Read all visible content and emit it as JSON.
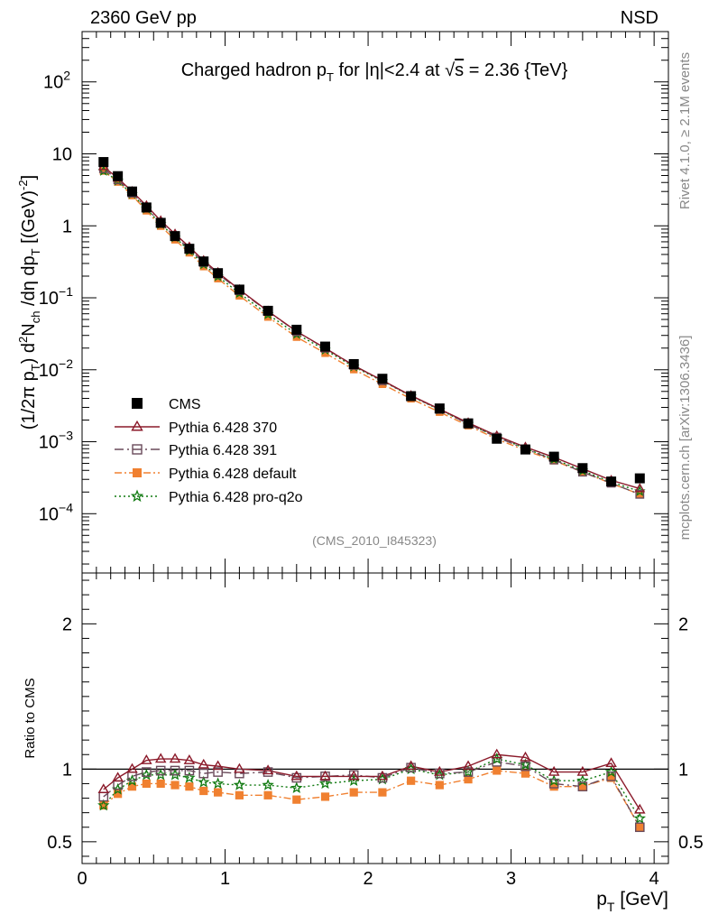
{
  "header": {
    "left": "2360 GeV pp",
    "right": "NSD"
  },
  "side_labels": {
    "rivet": "Rivet 4.1.0, ≥ 2.1M events",
    "mcplots": "mcplots.cern.ch [arXiv:1306.3436]"
  },
  "chart_data": [
    {
      "type": "line",
      "panel": "main",
      "title": "Charged hadron p_T for |η|<2.4 at √s = 2.36 {TeV}",
      "title_parts": {
        "t1": "Charged hadron p",
        "t1_sub": "T",
        "t2": " for |η|<2.4 at ",
        "t3": "√",
        "t4": "s",
        "t5": " = 2.36 {TeV}"
      },
      "ylabel": "(1/2π p_T) d²N_ch/dη dp_T [(GeV)⁻²]",
      "ylabel_parts": {
        "a": "(1/2π p",
        "b": "T",
        "c": ") d",
        "d": "2",
        "e": "N",
        "f": "ch",
        "g": " /dη  dp",
        "h": "T",
        "i": " [(GeV)",
        "j": "-2",
        "k": "]"
      },
      "ylog": true,
      "ylim": [
        1.5e-05,
        500
      ],
      "xlim": [
        0,
        4.1
      ],
      "ytick_labels": [
        {
          "v": 100,
          "base": "10",
          "exp": "2"
        },
        {
          "v": 10,
          "base": "10",
          "exp": ""
        },
        {
          "v": 1,
          "base": "1",
          "exp": ""
        },
        {
          "v": 0.1,
          "base": "10",
          "exp": "−1"
        },
        {
          "v": 0.01,
          "base": "10",
          "exp": "−2"
        },
        {
          "v": 0.001,
          "base": "10",
          "exp": "−3"
        },
        {
          "v": 0.0001,
          "base": "10",
          "exp": "−4"
        }
      ],
      "watermark": "(CMS_2010_I845323)",
      "x": [
        0.15,
        0.25,
        0.35,
        0.45,
        0.55,
        0.65,
        0.75,
        0.85,
        0.95,
        1.1,
        1.3,
        1.5,
        1.7,
        1.9,
        2.1,
        2.3,
        2.5,
        2.7,
        2.9,
        3.1,
        3.3,
        3.5,
        3.7,
        3.9
      ],
      "cms": [
        7.7,
        4.9,
        3.0,
        1.8,
        1.1,
        0.72,
        0.48,
        0.32,
        0.22,
        0.13,
        0.066,
        0.036,
        0.021,
        0.012,
        0.0075,
        0.0043,
        0.0029,
        0.0018,
        0.0011,
        0.00078,
        0.00062,
        0.00043,
        0.00028,
        0.00031
      ],
      "legend": [
        "CMS",
        "Pythia 6.428 370",
        "Pythia 6.428 391",
        "Pythia 6.428 default",
        "Pythia 6.428 pro-q2o"
      ]
    },
    {
      "type": "line",
      "panel": "ratio",
      "ylabel": "Ratio to CMS",
      "ylim": [
        0.35,
        2.35
      ],
      "xlim": [
        0,
        4.1
      ],
      "xlabel": "p_T [GeV]",
      "xlabel_parts": {
        "a": "p",
        "b": "T",
        "c": " [GeV]"
      },
      "x_ticks": [
        {
          "v": 0,
          "label": "0"
        },
        {
          "v": 1,
          "label": "1"
        },
        {
          "v": 2,
          "label": "2"
        },
        {
          "v": 3,
          "label": "3"
        },
        {
          "v": 4,
          "label": "4"
        }
      ],
      "y_ticks": [
        {
          "v": 2,
          "label": "2"
        },
        {
          "v": 1,
          "label": "1"
        },
        {
          "v": 0.5,
          "label": "0.5"
        }
      ],
      "series": [
        {
          "name": "Pythia 6.428 370",
          "key": "s370",
          "color": "#8b1a2a",
          "dash": "",
          "marker": "triangle-open",
          "values": [
            0.86,
            0.94,
            1.0,
            1.06,
            1.07,
            1.07,
            1.06,
            1.03,
            1.02,
            1.0,
            0.99,
            0.95,
            0.95,
            0.95,
            0.95,
            1.02,
            0.98,
            1.02,
            1.1,
            1.08,
            0.98,
            0.98,
            1.04,
            0.72
          ]
        },
        {
          "name": "Pythia 6.428 391",
          "key": "s391",
          "color": "#6a4a5a",
          "dash": "10,4,2,4",
          "marker": "square-open",
          "values": [
            0.81,
            0.89,
            0.95,
            0.98,
            0.99,
            0.99,
            0.99,
            0.97,
            0.98,
            0.97,
            0.98,
            0.94,
            0.95,
            0.96,
            0.94,
            1.01,
            0.97,
            0.98,
            1.05,
            1.02,
            0.9,
            0.88,
            0.95,
            0.6
          ]
        },
        {
          "name": "Pythia 6.428 default",
          "key": "sdef",
          "color": "#f08030",
          "dash": "8,3,2,3",
          "marker": "square-filled",
          "values": [
            0.75,
            0.83,
            0.88,
            0.9,
            0.9,
            0.89,
            0.88,
            0.85,
            0.84,
            0.82,
            0.82,
            0.79,
            0.81,
            0.84,
            0.84,
            0.92,
            0.89,
            0.93,
            0.99,
            0.97,
            0.88,
            0.88,
            0.94,
            0.6
          ]
        },
        {
          "name": "Pythia 6.428 pro-q2o",
          "key": "sq2o",
          "color": "#117a11",
          "dash": "2,3",
          "marker": "star",
          "values": [
            0.75,
            0.86,
            0.92,
            0.96,
            0.96,
            0.96,
            0.94,
            0.91,
            0.9,
            0.89,
            0.89,
            0.87,
            0.9,
            0.92,
            0.93,
            1.0,
            0.96,
            0.98,
            1.07,
            1.03,
            0.92,
            0.92,
            0.98,
            0.66
          ]
        }
      ]
    }
  ],
  "colors": {
    "cms": "#000000",
    "axis": "#000000",
    "side_text": "#888888"
  }
}
